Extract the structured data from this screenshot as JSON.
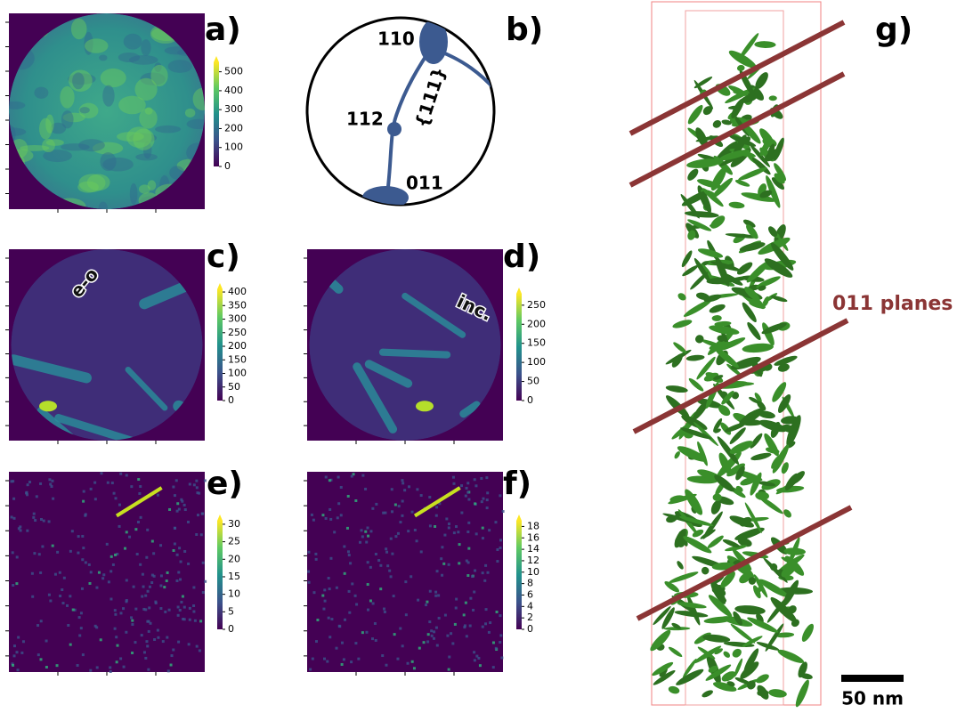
{
  "panels": [
    {
      "label": "a)",
      "colorbar": {
        "lim": [
          0,
          550
        ],
        "ticks": [
          0,
          100,
          200,
          300,
          400,
          500
        ]
      }
    },
    {
      "label": "b)"
    },
    {
      "label": "c)",
      "annotation": "e-o",
      "colorbar": {
        "lim": [
          0,
          410
        ],
        "ticks": [
          0,
          50,
          100,
          150,
          200,
          250,
          300,
          350,
          400
        ]
      }
    },
    {
      "label": "d)",
      "annotation": "inc.",
      "colorbar": {
        "lim": [
          0,
          280
        ],
        "ticks": [
          0,
          50,
          100,
          150,
          200,
          250
        ]
      }
    },
    {
      "label": "e)",
      "colorbar": {
        "lim": [
          0,
          31
        ],
        "ticks": [
          0,
          5,
          10,
          15,
          20,
          25,
          30
        ]
      }
    },
    {
      "label": "f)",
      "colorbar": {
        "lim": [
          0,
          19
        ],
        "ticks": [
          0,
          2,
          4,
          6,
          8,
          10,
          12,
          14,
          16,
          18
        ]
      }
    },
    {
      "label": "g)"
    }
  ],
  "diagram": {
    "poles": [
      "110",
      "112",
      "011"
    ],
    "zone": "{111}"
  },
  "reconstruction": {
    "annotation": "011 planes",
    "scale_bar": "50 nm"
  }
}
